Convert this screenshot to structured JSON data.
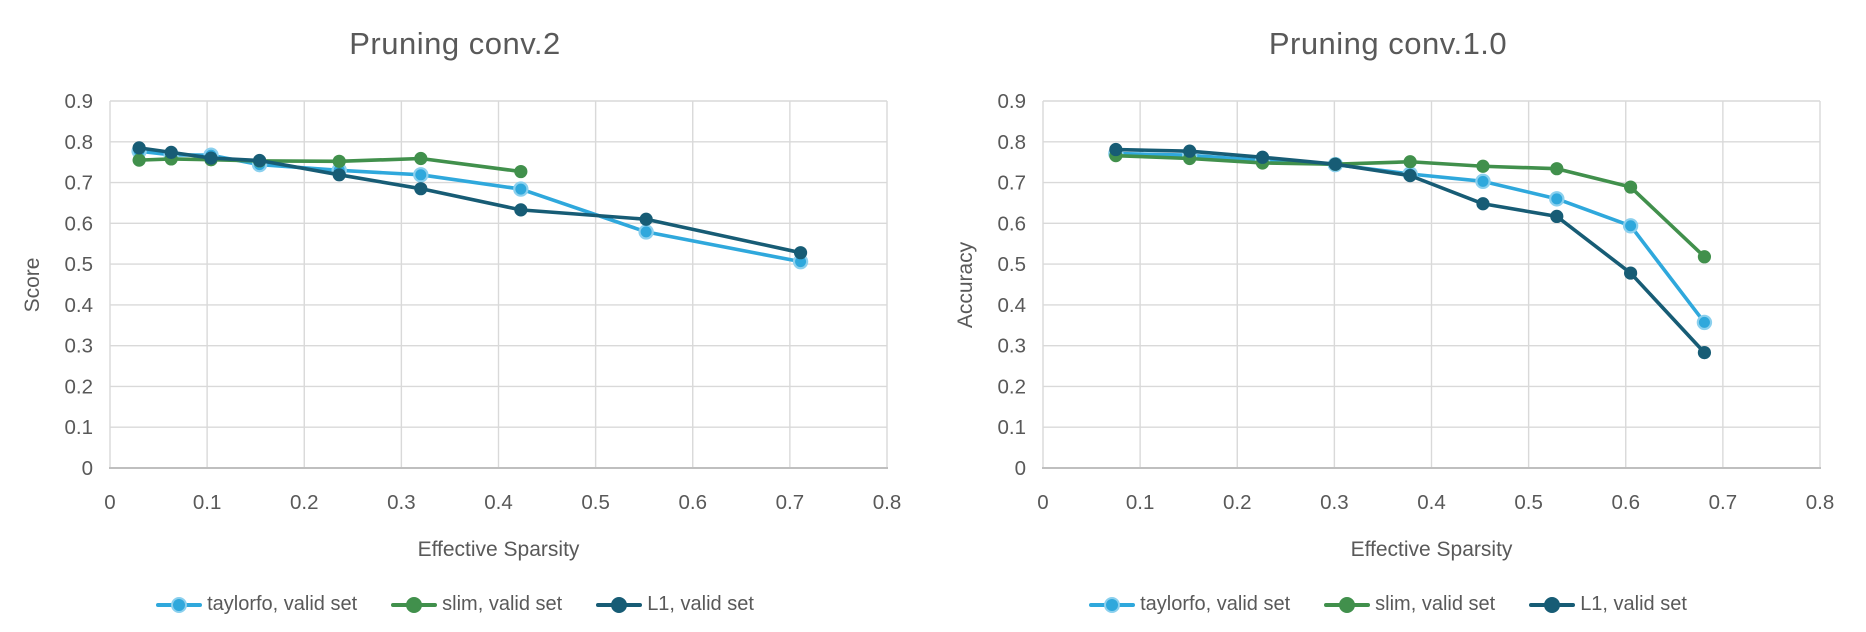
{
  "colors": {
    "background": "#FFFFFF",
    "text": "#595959",
    "grid": "#D9D9D9",
    "axis_line": "#BFBFBF"
  },
  "chart_data": [
    {
      "type": "line",
      "title": "Pruning conv.2",
      "xlabel": "Effective Sparsity",
      "ylabel": "Score",
      "xlim": [
        0,
        0.8
      ],
      "ylim": [
        0,
        0.9
      ],
      "xticks": [
        0,
        0.1,
        0.2,
        0.3,
        0.4,
        0.5,
        0.6,
        0.7,
        0.8
      ],
      "yticks": [
        0,
        0.1,
        0.2,
        0.3,
        0.4,
        0.5,
        0.6,
        0.7,
        0.8,
        0.9
      ],
      "grid": true,
      "legend_position": "bottom",
      "series": [
        {
          "name": "taylorfo, valid set",
          "color": "#2FA8DC",
          "marker_ring": "#8BD0EE",
          "x": [
            0.03,
            0.063,
            0.104,
            0.154,
            0.236,
            0.32,
            0.423,
            0.552,
            0.711
          ],
          "y": [
            0.777,
            0.768,
            0.767,
            0.744,
            0.73,
            0.719,
            0.684,
            0.579,
            0.506
          ]
        },
        {
          "name": "slim, valid set",
          "color": "#41904C",
          "x": [
            0.03,
            0.063,
            0.104,
            0.154,
            0.236,
            0.32,
            0.423
          ],
          "y": [
            0.755,
            0.758,
            0.756,
            0.753,
            0.752,
            0.759,
            0.727
          ]
        },
        {
          "name": "L1, valid set",
          "color": "#175C75",
          "x": [
            0.03,
            0.063,
            0.104,
            0.154,
            0.236,
            0.32,
            0.423,
            0.552,
            0.711
          ],
          "y": [
            0.785,
            0.774,
            0.76,
            0.754,
            0.719,
            0.685,
            0.633,
            0.61,
            0.528
          ]
        }
      ]
    },
    {
      "type": "line",
      "title": "Pruning conv.1.0",
      "xlabel": "Effective Sparsity",
      "ylabel": "Accuracy",
      "xlim": [
        0,
        0.8
      ],
      "ylim": [
        0,
        0.9
      ],
      "xticks": [
        0,
        0.1,
        0.2,
        0.3,
        0.4,
        0.5,
        0.6,
        0.7,
        0.8
      ],
      "yticks": [
        0,
        0.1,
        0.2,
        0.3,
        0.4,
        0.5,
        0.6,
        0.7,
        0.8,
        0.9
      ],
      "grid": true,
      "legend_position": "bottom",
      "series": [
        {
          "name": "taylorfo, valid set",
          "color": "#2FA8DC",
          "marker_ring": "#8BD0EE",
          "x": [
            0.075,
            0.151,
            0.226,
            0.301,
            0.378,
            0.453,
            0.529,
            0.605,
            0.681
          ],
          "y": [
            0.771,
            0.767,
            0.754,
            0.744,
            0.721,
            0.703,
            0.66,
            0.594,
            0.357
          ]
        },
        {
          "name": "slim, valid set",
          "color": "#41904C",
          "x": [
            0.075,
            0.151,
            0.226,
            0.301,
            0.378,
            0.453,
            0.529,
            0.605,
            0.681
          ],
          "y": [
            0.766,
            0.759,
            0.748,
            0.745,
            0.751,
            0.74,
            0.734,
            0.689,
            0.518
          ]
        },
        {
          "name": "L1, valid set",
          "color": "#175C75",
          "x": [
            0.075,
            0.151,
            0.226,
            0.301,
            0.378,
            0.453,
            0.529,
            0.605,
            0.681
          ],
          "y": [
            0.781,
            0.777,
            0.762,
            0.745,
            0.717,
            0.648,
            0.617,
            0.478,
            0.283
          ]
        }
      ]
    }
  ]
}
